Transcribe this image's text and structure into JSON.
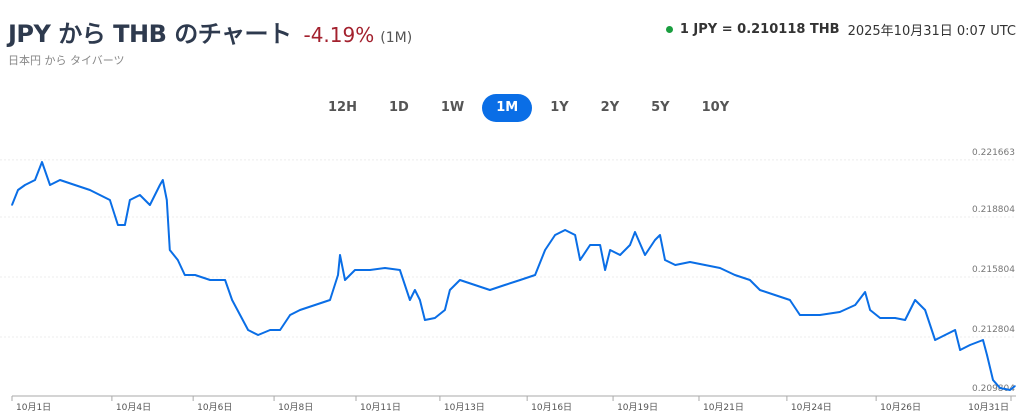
{
  "header": {
    "title": "JPY から THB のチャート",
    "change": "-4.19%",
    "period": "(1M)",
    "subtitle": "日本円 から タイバーツ",
    "rate": "1 JPY = 0.210118 THB",
    "timestamp": "2025年10月31日 0:07 UTC",
    "status_color": "#1a9e3f"
  },
  "tabs": [
    {
      "label": "12H",
      "active": false
    },
    {
      "label": "1D",
      "active": false
    },
    {
      "label": "1W",
      "active": false
    },
    {
      "label": "1M",
      "active": true
    },
    {
      "label": "1Y",
      "active": false
    },
    {
      "label": "2Y",
      "active": false
    },
    {
      "label": "5Y",
      "active": false
    },
    {
      "label": "10Y",
      "active": false
    }
  ],
  "chart_data": {
    "type": "line",
    "title": "JPY/THB 1M",
    "line_color": "#0a6ee6",
    "xlim": [
      1,
      31
    ],
    "ylim": [
      0.209804,
      0.221663
    ],
    "yticks": [
      "0.221663",
      "0.218804",
      "0.215804",
      "0.212804",
      "0.209804"
    ],
    "xticks": [
      {
        "day": 1.0,
        "label": "10月1日"
      },
      {
        "day": 4.0,
        "label": "10月4日"
      },
      {
        "day": 6.44,
        "label": "10月6日"
      },
      {
        "day": 8.87,
        "label": "10月8日"
      },
      {
        "day": 11.33,
        "label": "10月11日"
      },
      {
        "day": 13.85,
        "label": "10月13日"
      },
      {
        "day": 16.47,
        "label": "10月16日"
      },
      {
        "day": 19.05,
        "label": "10月19日"
      },
      {
        "day": 21.63,
        "label": "10月21日"
      },
      {
        "day": 24.27,
        "label": "10月24日"
      },
      {
        "day": 26.95,
        "label": "10月26日"
      },
      {
        "day": 31.0,
        "label": "10月31日"
      }
    ],
    "points": [
      [
        1.0,
        0.219404
      ],
      [
        1.18,
        0.220154
      ],
      [
        1.39,
        0.220404
      ],
      [
        1.69,
        0.220654
      ],
      [
        1.9,
        0.221554
      ],
      [
        2.14,
        0.220404
      ],
      [
        2.44,
        0.220654
      ],
      [
        2.89,
        0.220404
      ],
      [
        3.34,
        0.220154
      ],
      [
        3.64,
        0.219904
      ],
      [
        3.94,
        0.219654
      ],
      [
        4.18,
        0.218404
      ],
      [
        4.39,
        0.218404
      ],
      [
        4.54,
        0.219654
      ],
      [
        4.84,
        0.219904
      ],
      [
        5.14,
        0.219404
      ],
      [
        5.44,
        0.220404
      ],
      [
        5.53,
        0.220654
      ],
      [
        5.65,
        0.219654
      ],
      [
        5.74,
        0.217154
      ],
      [
        5.98,
        0.216654
      ],
      [
        6.19,
        0.215904
      ],
      [
        6.5,
        0.215904
      ],
      [
        6.95,
        0.215654
      ],
      [
        7.4,
        0.215654
      ],
      [
        7.61,
        0.214654
      ],
      [
        7.85,
        0.213904
      ],
      [
        8.09,
        0.213154
      ],
      [
        8.39,
        0.212904
      ],
      [
        8.75,
        0.213154
      ],
      [
        9.05,
        0.213154
      ],
      [
        9.35,
        0.213904
      ],
      [
        9.65,
        0.214154
      ],
      [
        10.1,
        0.214404
      ],
      [
        10.55,
        0.214654
      ],
      [
        10.79,
        0.215904
      ],
      [
        10.85,
        0.216904
      ],
      [
        11.0,
        0.215654
      ],
      [
        11.3,
        0.216154
      ],
      [
        11.75,
        0.216154
      ],
      [
        12.2,
        0.216254
      ],
      [
        12.65,
        0.216154
      ],
      [
        12.8,
        0.215404
      ],
      [
        12.95,
        0.214654
      ],
      [
        13.1,
        0.215154
      ],
      [
        13.25,
        0.214654
      ],
      [
        13.4,
        0.213654
      ],
      [
        13.7,
        0.213754
      ],
      [
        14.0,
        0.214154
      ],
      [
        14.15,
        0.215154
      ],
      [
        14.45,
        0.215654
      ],
      [
        14.9,
        0.215404
      ],
      [
        15.35,
        0.215154
      ],
      [
        15.8,
        0.215404
      ],
      [
        16.26,
        0.215654
      ],
      [
        16.71,
        0.215904
      ],
      [
        17.01,
        0.217154
      ],
      [
        17.31,
        0.217904
      ],
      [
        17.61,
        0.218154
      ],
      [
        17.91,
        0.217904
      ],
      [
        18.06,
        0.216654
      ],
      [
        18.36,
        0.217404
      ],
      [
        18.66,
        0.217404
      ],
      [
        18.81,
        0.216154
      ],
      [
        18.96,
        0.217154
      ],
      [
        19.26,
        0.216904
      ],
      [
        19.56,
        0.217404
      ],
      [
        19.71,
        0.218054
      ],
      [
        20.01,
        0.216904
      ],
      [
        20.31,
        0.217654
      ],
      [
        20.46,
        0.217904
      ],
      [
        20.61,
        0.216654
      ],
      [
        20.92,
        0.216404
      ],
      [
        21.36,
        0.216554
      ],
      [
        21.81,
        0.216404
      ],
      [
        22.26,
        0.216254
      ],
      [
        22.71,
        0.215904
      ],
      [
        23.16,
        0.215654
      ],
      [
        23.46,
        0.215154
      ],
      [
        23.91,
        0.214904
      ],
      [
        24.36,
        0.214654
      ],
      [
        24.66,
        0.213904
      ],
      [
        25.26,
        0.213904
      ],
      [
        25.86,
        0.214054
      ],
      [
        26.32,
        0.214404
      ],
      [
        26.62,
        0.215054
      ],
      [
        26.77,
        0.214154
      ],
      [
        27.07,
        0.213754
      ],
      [
        27.52,
        0.213754
      ],
      [
        27.82,
        0.213654
      ],
      [
        28.12,
        0.214654
      ],
      [
        28.42,
        0.214154
      ],
      [
        28.72,
        0.212654
      ],
      [
        29.02,
        0.212904
      ],
      [
        29.32,
        0.213154
      ],
      [
        29.47,
        0.212154
      ],
      [
        29.77,
        0.212404
      ],
      [
        30.16,
        0.212654
      ],
      [
        30.28,
        0.211904
      ],
      [
        30.46,
        0.210654
      ],
      [
        30.67,
        0.210254
      ],
      [
        30.97,
        0.210154
      ],
      [
        31.12,
        0.210354
      ]
    ]
  }
}
